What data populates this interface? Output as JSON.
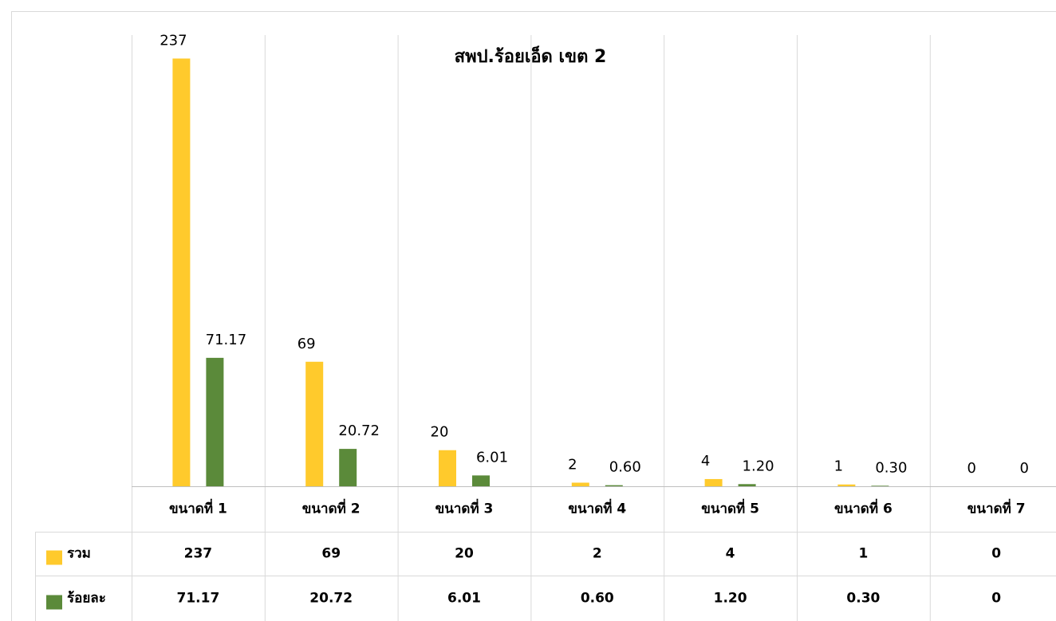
{
  "chart_data": {
    "type": "bar",
    "title": "สพป.ร้อยเอ็ด เขต 2",
    "categories": [
      "ขนาดที่ 1",
      "ขนาดที่ 2",
      "ขนาดที่ 3",
      "ขนาดที่ 4",
      "ขนาดที่ 5",
      "ขนาดที่ 6",
      "ขนาดที่ 7"
    ],
    "series": [
      {
        "name": "รวม",
        "color": "#ffca2c",
        "values": [
          237,
          69,
          20,
          2,
          4,
          1,
          0
        ]
      },
      {
        "name": "ร้อยละ",
        "color": "#5b8a3a",
        "values": [
          71.17,
          20.72,
          6.01,
          0.6,
          1.2,
          0.3,
          0
        ],
        "value_labels": [
          "71.17",
          "20.72",
          "6.01",
          "0.60",
          "1.20",
          "0.30",
          "0"
        ]
      }
    ],
    "ylim": [
      0,
      250
    ],
    "grid": false,
    "data_table": true
  }
}
